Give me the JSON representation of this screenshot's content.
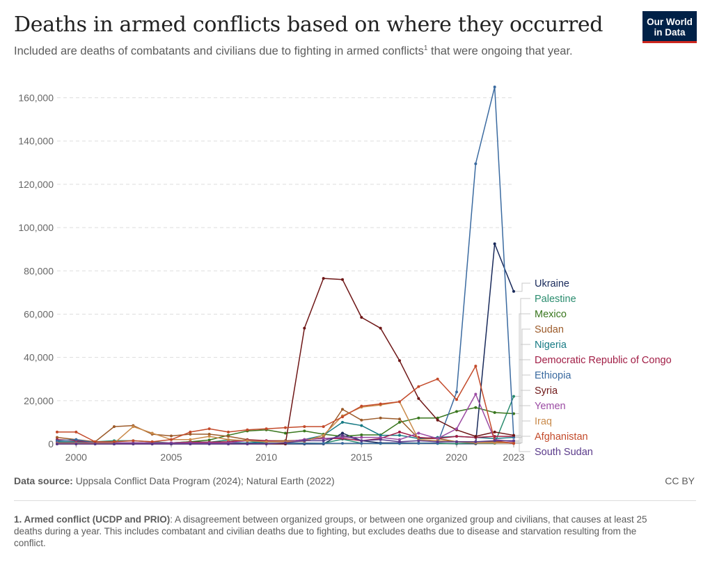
{
  "header": {
    "title": "Deaths in armed conflicts based on where they occurred",
    "subtitle": "Included are deaths of combatants and civilians due to fighting in armed conflicts",
    "subtitle_note_marker": "1",
    "subtitle_end": " that were ongoing that year."
  },
  "logo": {
    "line1": "Our World",
    "line2": "in Data",
    "bg_color": "#002147",
    "accent_color": "#ce261e"
  },
  "footer": {
    "source_label": "Data source:",
    "source_text": " Uppsala Conflict Data Program (2024); Natural Earth (2022)",
    "license": "CC BY",
    "footnote_label": "1. Armed conflict (UCDP and PRIO)",
    "footnote_text": ": A disagreement between organized groups, or between one organized group and civilians, that causes at least 25 deaths during a year. This includes combatant and civilian deaths due to fighting, but excludes deaths due to disease and starvation resulting from the conflict."
  },
  "chart_data": {
    "type": "line",
    "title": "Deaths in armed conflicts based on where they occurred",
    "xlabel": "",
    "ylabel": "",
    "xlim": [
      2000,
      2023
    ],
    "ylim": [
      0,
      165000
    ],
    "x_ticks": [
      2000,
      2005,
      2010,
      2015,
      2020,
      2023
    ],
    "y_ticks": [
      0,
      20000,
      40000,
      60000,
      80000,
      100000,
      120000,
      140000,
      160000
    ],
    "y_tick_labels": [
      "0",
      "20,000",
      "40,000",
      "60,000",
      "80,000",
      "100,000",
      "120,000",
      "140,000",
      "160,000"
    ],
    "grid": "horizontal-dashed",
    "legend": "right-labels",
    "x": [
      1999,
      2000,
      2001,
      2002,
      2003,
      2004,
      2005,
      2006,
      2007,
      2008,
      2009,
      2010,
      2011,
      2012,
      2013,
      2014,
      2015,
      2016,
      2017,
      2018,
      2019,
      2020,
      2021,
      2022,
      2023
    ],
    "series": [
      {
        "name": "Ukraine",
        "color": "#18295a",
        "values": [
          0,
          0,
          0,
          0,
          0,
          0,
          0,
          0,
          0,
          0,
          0,
          0,
          0,
          0,
          0,
          5000,
          1500,
          500,
          500,
          400,
          400,
          100,
          100,
          92500,
          70500
        ]
      },
      {
        "name": "Palestine",
        "color": "#2a8c6e",
        "values": [
          1000,
          500,
          1000,
          1500,
          1500,
          1000,
          500,
          1000,
          800,
          1800,
          1500,
          300,
          300,
          400,
          300,
          2200,
          300,
          200,
          200,
          400,
          200,
          200,
          400,
          300,
          22000
        ]
      },
      {
        "name": "Mexico",
        "color": "#38761d",
        "values": [
          800,
          400,
          200,
          300,
          300,
          500,
          500,
          1000,
          1800,
          4000,
          6000,
          6500,
          5000,
          6000,
          4500,
          3500,
          4200,
          4200,
          10000,
          12000,
          12000,
          15000,
          16800,
          14500,
          14000
        ]
      },
      {
        "name": "Sudan",
        "color": "#9c5b2a",
        "values": [
          3000,
          2000,
          1000,
          8000,
          8500,
          4500,
          3700,
          4500,
          4500,
          3500,
          2000,
          1500,
          1500,
          1700,
          3000,
          16000,
          11000,
          12000,
          11500,
          2500,
          2500,
          1000,
          1000,
          1000,
          500
        ]
      },
      {
        "name": "Nigeria",
        "color": "#167a84",
        "values": [
          1000,
          1000,
          500,
          500,
          500,
          500,
          500,
          500,
          500,
          500,
          500,
          1000,
          1000,
          2000,
          4000,
          10000,
          8500,
          4000,
          4000,
          2500,
          3000,
          3500,
          3000,
          2500,
          3000
        ]
      },
      {
        "name": "Democratic Republic of Congo",
        "color": "#a11d45",
        "values": [
          2000,
          1500,
          500,
          400,
          500,
          500,
          500,
          800,
          800,
          1000,
          1800,
          1500,
          1000,
          2000,
          2500,
          2500,
          1500,
          2500,
          5500,
          3000,
          2500,
          3500,
          3000,
          3500,
          3500
        ]
      },
      {
        "name": "Ethiopia",
        "color": "#3a6aa0",
        "values": [
          1500,
          2000,
          500,
          500,
          500,
          500,
          300,
          300,
          300,
          300,
          300,
          300,
          300,
          300,
          300,
          300,
          300,
          300,
          300,
          300,
          300,
          24000,
          129500,
          165000,
          3000
        ]
      },
      {
        "name": "Syria",
        "color": "#6e1616",
        "values": [
          0,
          0,
          0,
          0,
          0,
          0,
          0,
          0,
          0,
          0,
          0,
          0,
          0,
          53500,
          76500,
          76000,
          58500,
          53500,
          38500,
          21000,
          11000,
          6500,
          3500,
          5500,
          4000
        ]
      },
      {
        "name": "Yemen",
        "color": "#9b4ba3",
        "values": [
          500,
          500,
          500,
          500,
          500,
          500,
          500,
          500,
          500,
          500,
          1500,
          1000,
          1000,
          2000,
          2500,
          3000,
          3000,
          3000,
          2000,
          5000,
          2500,
          7000,
          23000,
          2000,
          1000
        ]
      },
      {
        "name": "Iraq",
        "color": "#c98a4a",
        "values": [
          300,
          300,
          300,
          300,
          8000,
          5000,
          2000,
          2000,
          3500,
          2000,
          1500,
          1000,
          1000,
          1200,
          4000,
          13000,
          17000,
          18000,
          19500,
          2000,
          1500,
          1000,
          500,
          500,
          500
        ]
      },
      {
        "name": "Afghanistan",
        "color": "#c34a2a",
        "values": [
          5500,
          5500,
          1000,
          1000,
          1500,
          1000,
          2000,
          5500,
          7000,
          5500,
          6500,
          7000,
          7500,
          8000,
          8000,
          12500,
          17500,
          18500,
          19500,
          26500,
          30000,
          20500,
          36000,
          1500,
          200
        ]
      },
      {
        "name": "South Sudan",
        "color": "#5a3a8a",
        "values": [
          0,
          0,
          0,
          0,
          0,
          0,
          0,
          0,
          0,
          0,
          0,
          0,
          500,
          1500,
          1500,
          4000,
          1500,
          2000,
          1000,
          1500,
          1000,
          1000,
          1000,
          1500,
          1500
        ]
      }
    ]
  }
}
